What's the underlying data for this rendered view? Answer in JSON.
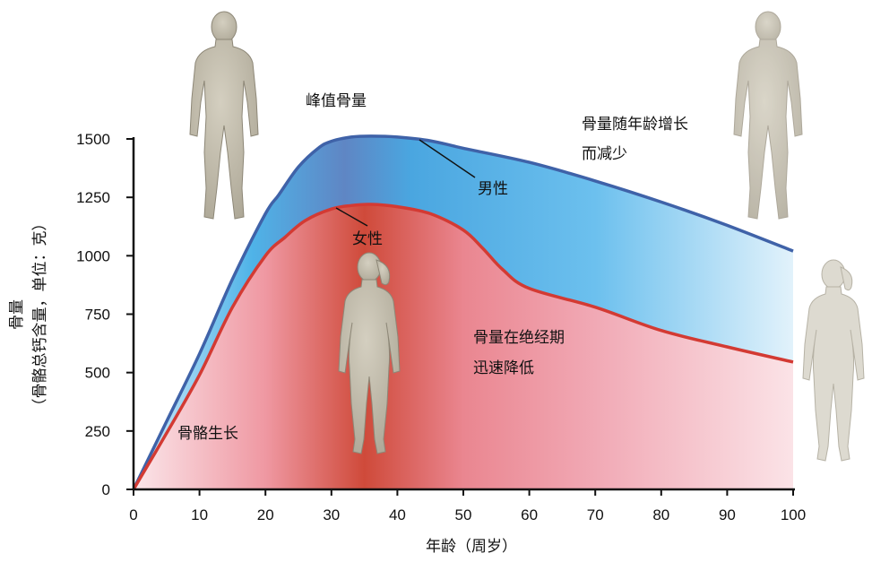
{
  "chart_data": {
    "type": "area",
    "xlabel": "年龄（周岁）",
    "ylabel": "骨量",
    "ylabel_sub": "（骨骼总钙含量，单位：克）",
    "xlim": [
      0,
      100
    ],
    "ylim": [
      0,
      1500
    ],
    "x_ticks": [
      "0",
      "10",
      "20",
      "30",
      "40",
      "50",
      "60",
      "70",
      "80",
      "90",
      "100"
    ],
    "y_ticks": [
      "0",
      "250",
      "500",
      "750",
      "1000",
      "1250",
      "1500"
    ],
    "grid": false,
    "series": [
      {
        "name": "男性",
        "color": "#3f62a8",
        "fill": "#5ab4e8",
        "x": [
          0,
          5,
          10,
          15,
          20,
          22,
          25,
          28,
          30,
          33,
          36,
          40,
          45,
          50,
          60,
          70,
          80,
          90,
          100
        ],
        "y": [
          0,
          290,
          580,
          900,
          1180,
          1260,
          1380,
          1460,
          1490,
          1508,
          1512,
          1508,
          1492,
          1460,
          1400,
          1320,
          1230,
          1130,
          1020
        ]
      },
      {
        "name": "女性",
        "color": "#d33a33",
        "fill": "#e8707a",
        "x": [
          0,
          5,
          10,
          15,
          20,
          23,
          26,
          30,
          33,
          36,
          40,
          45,
          50,
          53,
          56,
          60,
          70,
          80,
          90,
          100
        ],
        "y": [
          0,
          240,
          490,
          780,
          1000,
          1080,
          1150,
          1200,
          1215,
          1220,
          1210,
          1180,
          1110,
          1030,
          940,
          860,
          780,
          680,
          610,
          545
        ]
      }
    ],
    "annotations": {
      "peak": "峰值骨量",
      "decline_line1": "骨量随年龄增长",
      "decline_line2": "而减少",
      "growth": "骨骼生长",
      "menopause_line1": "骨量在绝经期",
      "menopause_line2": "迅速降低",
      "male_label": "男性",
      "female_label": "女性"
    },
    "figures": [
      "young-man-icon",
      "old-man-icon",
      "young-woman-icon",
      "old-woman-icon"
    ]
  }
}
